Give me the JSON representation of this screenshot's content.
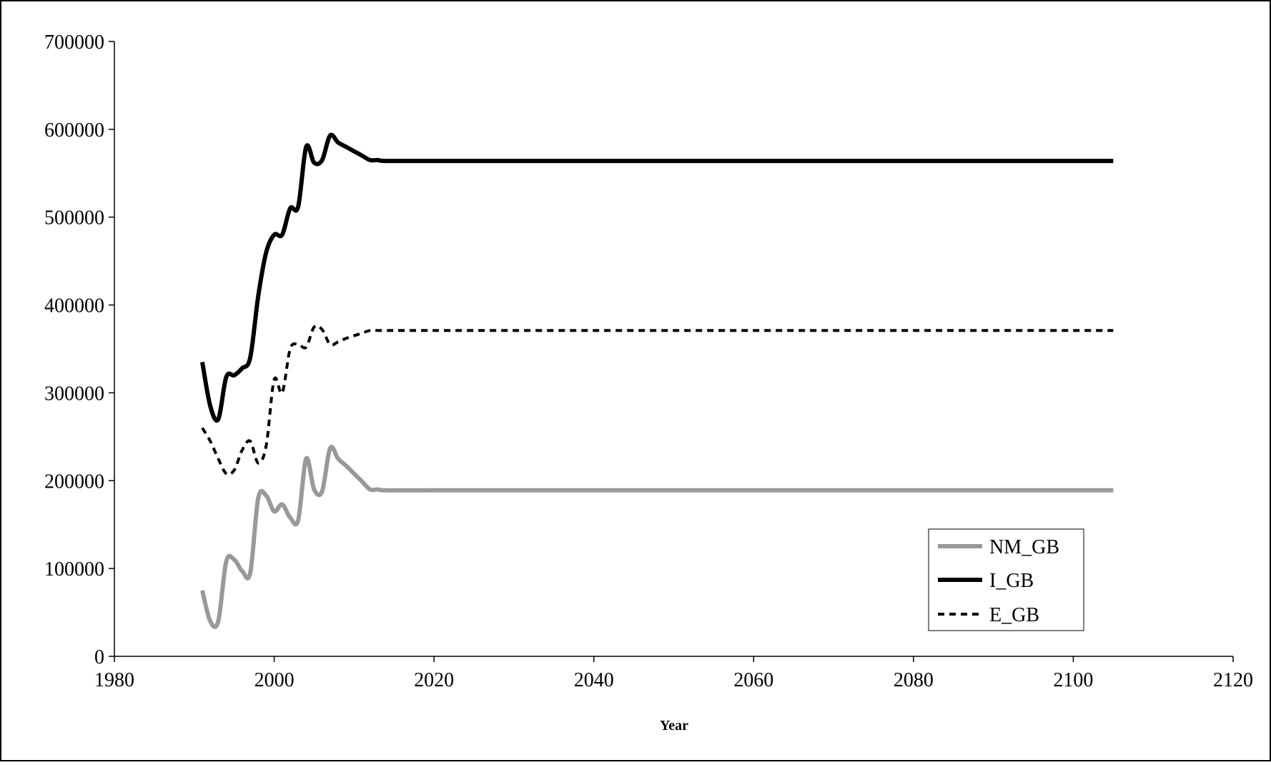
{
  "chart_data": {
    "type": "line",
    "title": "",
    "xlabel": "Year",
    "ylabel": "",
    "xlim": [
      1980,
      2120
    ],
    "ylim": [
      0,
      700000
    ],
    "x_ticks": [
      1980,
      2000,
      2020,
      2040,
      2060,
      2080,
      2100,
      2120
    ],
    "y_ticks": [
      0,
      100000,
      200000,
      300000,
      400000,
      500000,
      600000,
      700000
    ],
    "grid": false,
    "legend_position": "bottom-right",
    "series": [
      {
        "name": "NM_GB",
        "color": "#999999",
        "style": "solid",
        "x": [
          1991,
          1992,
          1993,
          1994,
          1995,
          1996,
          1997,
          1998,
          1999,
          2000,
          2001,
          2002,
          2003,
          2004,
          2005,
          2006,
          2007,
          2008,
          2009,
          2010,
          2011,
          2012,
          2013,
          2014,
          2020,
          2040,
          2060,
          2080,
          2100,
          2105
        ],
        "y": [
          75000,
          40000,
          40000,
          108000,
          110000,
          97000,
          95000,
          180000,
          183000,
          165000,
          173000,
          158000,
          155000,
          225000,
          190000,
          188000,
          237000,
          225000,
          217000,
          208000,
          199000,
          190000,
          190000,
          189000,
          189000,
          189000,
          189000,
          189000,
          189000,
          189000
        ]
      },
      {
        "name": "I_GB",
        "color": "#000000",
        "style": "solid",
        "x": [
          1991,
          1992,
          1993,
          1994,
          1995,
          1996,
          1997,
          1998,
          1999,
          2000,
          2001,
          2002,
          2003,
          2004,
          2005,
          2006,
          2007,
          2008,
          2009,
          2010,
          2011,
          2012,
          2013,
          2014,
          2020,
          2040,
          2060,
          2080,
          2100,
          2105
        ],
        "y": [
          335000,
          285000,
          270000,
          318000,
          320000,
          328000,
          340000,
          410000,
          460000,
          480000,
          480000,
          510000,
          512000,
          580000,
          562000,
          565000,
          593000,
          585000,
          580000,
          575000,
          570000,
          565000,
          565000,
          564000,
          564000,
          564000,
          564000,
          564000,
          564000,
          564000
        ]
      },
      {
        "name": "E_GB",
        "color": "#000000",
        "style": "dashed",
        "x": [
          1991,
          1992,
          1993,
          1994,
          1995,
          1996,
          1997,
          1998,
          1999,
          2000,
          2001,
          2002,
          2003,
          2004,
          2005,
          2006,
          2007,
          2008,
          2009,
          2010,
          2011,
          2012,
          2013,
          2014,
          2020,
          2040,
          2060,
          2080,
          2100,
          2105
        ],
        "y": [
          260000,
          245000,
          225000,
          208000,
          212000,
          235000,
          245000,
          220000,
          240000,
          315000,
          300000,
          350000,
          355000,
          352000,
          375000,
          372000,
          355000,
          358000,
          362000,
          365000,
          368000,
          371000,
          371000,
          371000,
          371000,
          371000,
          371000,
          371000,
          371000,
          371000
        ]
      }
    ]
  }
}
